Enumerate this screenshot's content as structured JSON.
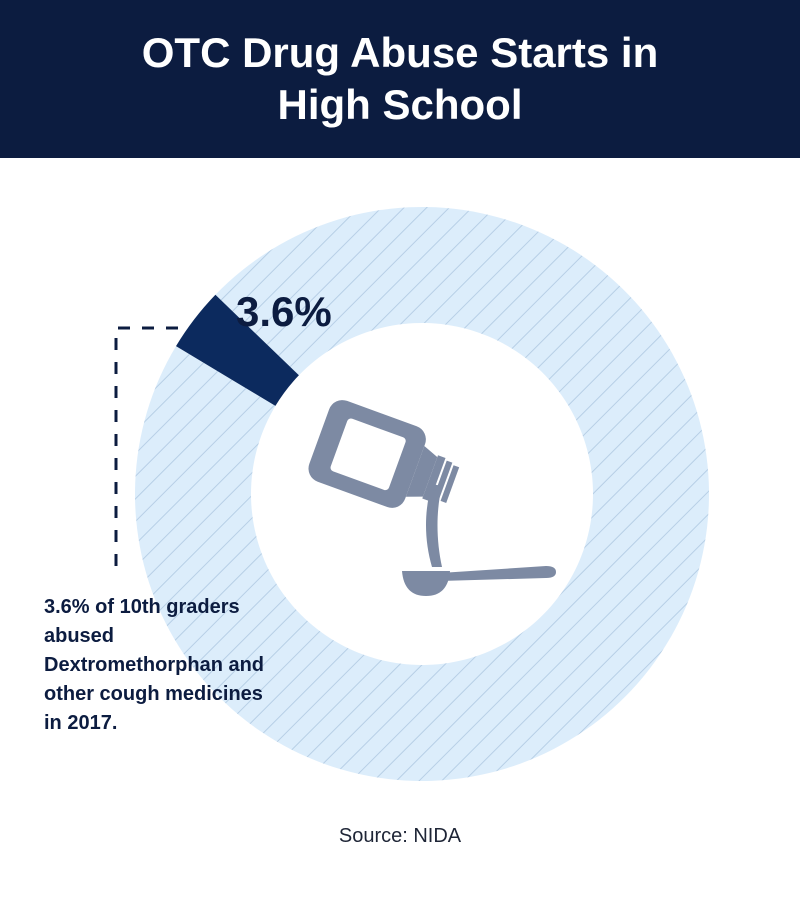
{
  "header": {
    "title": "OTC Drug Abuse Starts in High School"
  },
  "annotation": {
    "text": "3.6% of 10th graders abused Dextromethorphan and other cough medicines in 2017."
  },
  "source": {
    "text": "Source: NIDA"
  },
  "icon": {
    "name": "cough-syrup-bottle-pouring-into-spoon-icon"
  },
  "colors": {
    "header_background": "#0c1c40",
    "highlight_segment": "#0c2a5e",
    "ring_background": "#dcedfb",
    "ring_hatch": "#b7cfe6",
    "icon": "#7d8aa3",
    "text": "#0c1c40"
  },
  "chart_data": {
    "type": "pie",
    "style": "donut",
    "title": "OTC Drug Abuse Starts in High School",
    "slices": [
      {
        "label": "3.6%",
        "value": 3.6,
        "color": "#0c2a5e"
      },
      {
        "label": "",
        "value": 96.4,
        "color": "#dcedfb"
      }
    ],
    "value_label": "3.6%",
    "legend": "none"
  }
}
